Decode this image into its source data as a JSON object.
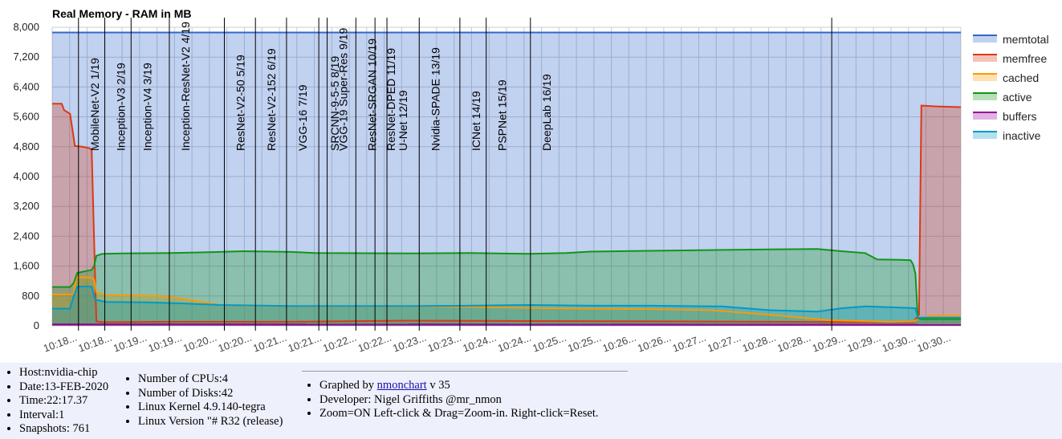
{
  "info": {
    "host": "Host:nvidia-chip",
    "date": "Date:13-FEB-2020",
    "time": "Time:22:17.37",
    "interval": "Interval:1",
    "snapshots": "Snapshots: 761",
    "cpus": "Number of CPUs:4",
    "disks": "Number of Disks:42",
    "kernel": "Linux Kernel 4.9.140-tegra",
    "version": "Linux Version \"# R32 (release)",
    "graphed_prefix": "Graphed by ",
    "graphed_link": "nmonchart",
    "graphed_suffix": " v 35",
    "developer": "Developer: Nigel Griffiths @mr_nmon",
    "zoom": "Zoom=ON Left-click & Drag=Zoom-in. Right-click=Reset."
  },
  "chart_data": {
    "type": "area",
    "title": "Real Memory - RAM in MB",
    "ylim": [
      0,
      8000
    ],
    "yticks": [
      "0",
      "800",
      "1,600",
      "2,400",
      "3,200",
      "4,000",
      "4,800",
      "5,600",
      "6,400",
      "7,200",
      "8,000"
    ],
    "xlim": [
      0,
      760
    ],
    "xticks": [
      "10:18...",
      "10:18...",
      "10:19...",
      "10:19...",
      "10:20...",
      "10:20...",
      "10:21...",
      "10:21...",
      "10:22...",
      "10:22...",
      "10:23...",
      "10:23...",
      "10:24...",
      "10:24...",
      "10:25...",
      "10:25...",
      "10:26...",
      "10:26...",
      "10:27...",
      "10:27...",
      "10:28...",
      "10:28...",
      "10:29...",
      "10:29...",
      "10:30...",
      "10:30..."
    ],
    "grid": true,
    "legend_position": "right",
    "series": [
      {
        "name": "memtotal",
        "color": "#3366cc",
        "points": [
          [
            0,
            7860
          ],
          [
            760,
            7860
          ]
        ]
      },
      {
        "name": "memfree",
        "color": "#dc3912",
        "points": [
          [
            0,
            5950
          ],
          [
            8,
            5950
          ],
          [
            10,
            5780
          ],
          [
            15,
            5680
          ],
          [
            19,
            4820
          ],
          [
            25,
            4800
          ],
          [
            31,
            4760
          ],
          [
            33,
            4720
          ],
          [
            36,
            1200
          ],
          [
            37,
            120
          ],
          [
            42,
            100
          ],
          [
            100,
            110
          ],
          [
            200,
            110
          ],
          [
            300,
            140
          ],
          [
            400,
            130
          ],
          [
            500,
            120
          ],
          [
            600,
            110
          ],
          [
            700,
            100
          ],
          [
            720,
            100
          ],
          [
            725,
            300
          ],
          [
            727,
            5900
          ],
          [
            740,
            5880
          ],
          [
            760,
            5860
          ]
        ]
      },
      {
        "name": "cached",
        "color": "#ff9900",
        "points": [
          [
            0,
            840
          ],
          [
            18,
            840
          ],
          [
            20,
            1300
          ],
          [
            32,
            1300
          ],
          [
            35,
            1250
          ],
          [
            37,
            900
          ],
          [
            45,
            820
          ],
          [
            60,
            820
          ],
          [
            90,
            800
          ],
          [
            110,
            720
          ],
          [
            140,
            560
          ],
          [
            160,
            540
          ],
          [
            220,
            520
          ],
          [
            300,
            520
          ],
          [
            350,
            510
          ],
          [
            400,
            480
          ],
          [
            450,
            460
          ],
          [
            500,
            450
          ],
          [
            550,
            420
          ],
          [
            600,
            300
          ],
          [
            650,
            150
          ],
          [
            700,
            110
          ],
          [
            720,
            120
          ],
          [
            726,
            200
          ],
          [
            735,
            270
          ],
          [
            760,
            270
          ]
        ]
      },
      {
        "name": "active",
        "color": "#109618",
        "points": [
          [
            0,
            1040
          ],
          [
            15,
            1040
          ],
          [
            18,
            1150
          ],
          [
            21,
            1420
          ],
          [
            30,
            1480
          ],
          [
            33,
            1500
          ],
          [
            35,
            1600
          ],
          [
            37,
            1880
          ],
          [
            42,
            1930
          ],
          [
            60,
            1940
          ],
          [
            100,
            1950
          ],
          [
            140,
            1980
          ],
          [
            160,
            2000
          ],
          [
            200,
            1980
          ],
          [
            220,
            1950
          ],
          [
            300,
            1940
          ],
          [
            350,
            1950
          ],
          [
            400,
            1930
          ],
          [
            430,
            1950
          ],
          [
            450,
            1990
          ],
          [
            500,
            2010
          ],
          [
            550,
            2030
          ],
          [
            600,
            2050
          ],
          [
            640,
            2060
          ],
          [
            660,
            2000
          ],
          [
            680,
            1950
          ],
          [
            690,
            1780
          ],
          [
            710,
            1770
          ],
          [
            718,
            1760
          ],
          [
            720,
            1650
          ],
          [
            722,
            1400
          ],
          [
            724,
            200
          ],
          [
            727,
            180
          ],
          [
            760,
            180
          ]
        ]
      },
      {
        "name": "buffers",
        "color": "#990099",
        "points": [
          [
            0,
            40
          ],
          [
            760,
            30
          ]
        ]
      },
      {
        "name": "inactive",
        "color": "#0099c6",
        "points": [
          [
            0,
            460
          ],
          [
            15,
            460
          ],
          [
            18,
            800
          ],
          [
            21,
            1050
          ],
          [
            30,
            1060
          ],
          [
            33,
            1050
          ],
          [
            36,
            700
          ],
          [
            45,
            640
          ],
          [
            80,
            630
          ],
          [
            110,
            600
          ],
          [
            140,
            560
          ],
          [
            200,
            530
          ],
          [
            300,
            530
          ],
          [
            350,
            540
          ],
          [
            400,
            560
          ],
          [
            450,
            540
          ],
          [
            500,
            540
          ],
          [
            560,
            520
          ],
          [
            600,
            420
          ],
          [
            640,
            380
          ],
          [
            660,
            470
          ],
          [
            680,
            520
          ],
          [
            700,
            500
          ],
          [
            718,
            480
          ],
          [
            722,
            470
          ],
          [
            724,
            220
          ],
          [
            730,
            220
          ],
          [
            760,
            220
          ]
        ]
      }
    ],
    "markers": [
      {
        "x": 22,
        "label": "MobileNet-V2 1/19"
      },
      {
        "x": 44,
        "label": "Inception-V3 2/19"
      },
      {
        "x": 66,
        "label": "Inception-V4 3/19"
      },
      {
        "x": 98,
        "label": "Inception-ResNet-V2 4/19"
      },
      {
        "x": 144,
        "label": "ResNet-V2-50 5/19"
      },
      {
        "x": 170,
        "label": "ResNet-V2-152 6/19"
      },
      {
        "x": 196,
        "label": "VGG-16 7/19"
      },
      {
        "x": 223,
        "label": "SRCNN-9-5-5 8/19"
      },
      {
        "x": 230,
        "label": "VGG-19 Super-Res 9/19"
      },
      {
        "x": 254,
        "label": "ResNet-SRGAN 10/19"
      },
      {
        "x": 270,
        "label": "ResNet-DPED 11/19"
      },
      {
        "x": 280,
        "label": "U-Net 12/19"
      },
      {
        "x": 307,
        "label": "Nvidia-SPADE 13/19"
      },
      {
        "x": 341,
        "label": "ICNet 14/19"
      },
      {
        "x": 363,
        "label": "PSPNet 15/19"
      },
      {
        "x": 400,
        "label": "DeepLab 16/19"
      },
      {
        "x": 652,
        "label": ""
      }
    ]
  }
}
